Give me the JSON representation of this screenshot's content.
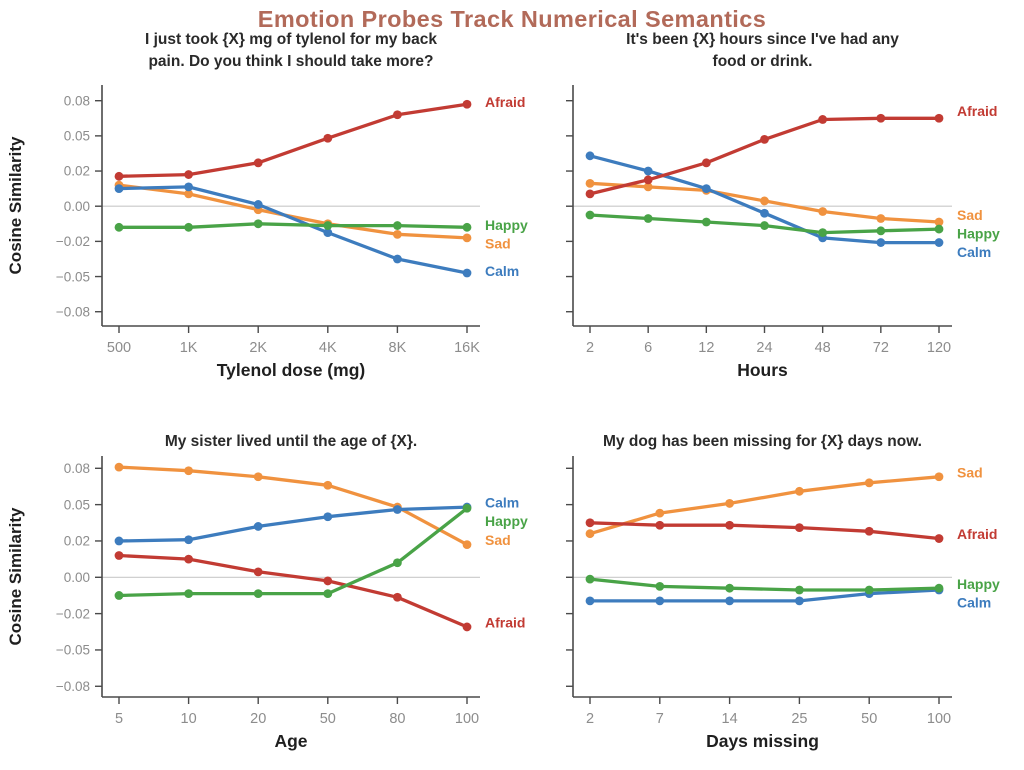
{
  "page": {
    "title": "Emotion Probes Track Numerical Semantics"
  },
  "colors": {
    "afraid": "#c23b33",
    "sad": "#f0923f",
    "happy": "#49a347",
    "calm": "#3d7cbe",
    "title_text": "#b26a59",
    "subtitle_text": "#2a2a2a",
    "axis_line": "#4a4a4a",
    "tick_text": "#8c8c8c",
    "axis_title_text": "#1f1f1f",
    "zero_line": "#c9c9c9"
  },
  "y_axis": {
    "label": "Cosine Similarity",
    "tick_values": [
      0.08,
      0.05,
      0.02,
      0.0,
      -0.02,
      -0.05,
      -0.08
    ],
    "tick_labels": [
      "0.08",
      "0.05",
      "0.02",
      "0.00",
      "−0.02",
      "−0.05",
      "−0.08"
    ],
    "tick_spacing": "equal-pixel",
    "ylim": [
      -0.088,
      0.088
    ]
  },
  "chart_data": [
    {
      "type": "line",
      "id": "tylenol",
      "title_lines": [
        "I just took {X} mg of tylenol for my back",
        "pain. Do you think I should take more?"
      ],
      "xlabel": "Tylenol dose (mg)",
      "categories": [
        "500",
        "1K",
        "2K",
        "4K",
        "8K",
        "16K"
      ],
      "y_tick_labels_visible": true,
      "series": [
        {
          "name": "Afraid",
          "color_key": "afraid",
          "values": [
            0.017,
            0.018,
            0.027,
            0.048,
            0.068,
            0.077
          ]
        },
        {
          "name": "Sad",
          "color_key": "sad",
          "values": [
            0.012,
            0.007,
            -0.002,
            -0.01,
            -0.016,
            -0.018
          ]
        },
        {
          "name": "Happy",
          "color_key": "happy",
          "values": [
            -0.012,
            -0.012,
            -0.01,
            -0.011,
            -0.011,
            -0.012
          ]
        },
        {
          "name": "Calm",
          "color_key": "calm",
          "values": [
            0.01,
            0.011,
            0.001,
            -0.015,
            -0.035,
            -0.047
          ]
        }
      ]
    },
    {
      "type": "line",
      "id": "hours",
      "title_lines": [
        "It's been {X} hours since I've had any",
        "food or drink."
      ],
      "xlabel": "Hours",
      "categories": [
        "2",
        "6",
        "12",
        "24",
        "48",
        "72",
        "120"
      ],
      "y_tick_labels_visible": false,
      "series": [
        {
          "name": "Afraid",
          "color_key": "afraid",
          "values": [
            0.007,
            0.015,
            0.027,
            0.047,
            0.064,
            0.065,
            0.065
          ]
        },
        {
          "name": "Sad",
          "color_key": "sad",
          "values": [
            0.013,
            0.011,
            0.009,
            0.003,
            -0.003,
            -0.007,
            -0.009
          ]
        },
        {
          "name": "Happy",
          "color_key": "happy",
          "values": [
            -0.005,
            -0.007,
            -0.009,
            -0.011,
            -0.015,
            -0.014,
            -0.013
          ]
        },
        {
          "name": "Calm",
          "color_key": "calm",
          "values": [
            0.033,
            0.02,
            0.01,
            -0.004,
            -0.018,
            -0.021,
            -0.021
          ]
        }
      ]
    },
    {
      "type": "line",
      "id": "age",
      "title_lines": [
        "My sister lived until the age of {X}."
      ],
      "xlabel": "Age",
      "categories": [
        "5",
        "10",
        "20",
        "50",
        "80",
        "100"
      ],
      "y_tick_labels_visible": true,
      "series": [
        {
          "name": "Afraid",
          "color_key": "afraid",
          "values": [
            0.012,
            0.01,
            0.003,
            -0.002,
            -0.011,
            -0.031
          ]
        },
        {
          "name": "Sad",
          "color_key": "sad",
          "values": [
            0.081,
            0.078,
            0.073,
            0.066,
            0.048,
            0.018
          ]
        },
        {
          "name": "Happy",
          "color_key": "happy",
          "values": [
            -0.01,
            -0.009,
            -0.009,
            -0.009,
            0.008,
            0.047
          ]
        },
        {
          "name": "Calm",
          "color_key": "calm",
          "values": [
            0.02,
            0.021,
            0.032,
            0.04,
            0.046,
            0.048
          ]
        }
      ]
    },
    {
      "type": "line",
      "id": "dog",
      "title_lines": [
        "My dog has been missing for {X} days now."
      ],
      "xlabel": "Days missing",
      "categories": [
        "2",
        "7",
        "14",
        "25",
        "50",
        "100"
      ],
      "y_tick_labels_visible": false,
      "series": [
        {
          "name": "Afraid",
          "color_key": "afraid",
          "values": [
            0.035,
            0.033,
            0.033,
            0.031,
            0.028,
            0.022
          ]
        },
        {
          "name": "Sad",
          "color_key": "sad",
          "values": [
            0.026,
            0.043,
            0.051,
            0.061,
            0.068,
            0.073
          ]
        },
        {
          "name": "Happy",
          "color_key": "happy",
          "values": [
            -0.001,
            -0.005,
            -0.006,
            -0.007,
            -0.007,
            -0.006
          ]
        },
        {
          "name": "Calm",
          "color_key": "calm",
          "values": [
            -0.013,
            -0.013,
            -0.013,
            -0.013,
            -0.009,
            -0.007
          ]
        }
      ]
    }
  ]
}
